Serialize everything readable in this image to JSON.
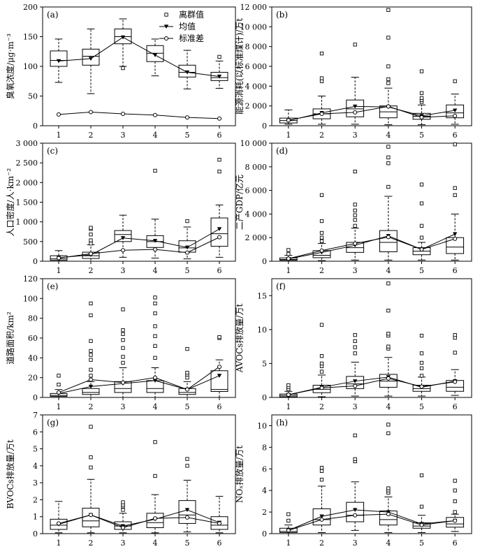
{
  "chart_data": [
    {
      "type": "boxplot",
      "panel": "(a)",
      "ylabel": "臭氧浓度/μg·m⁻³",
      "categories": [
        "1",
        "2",
        "3",
        "4",
        "5",
        "6"
      ],
      "ylim": [
        0,
        200
      ],
      "yticks": [
        0,
        50,
        100,
        150,
        200
      ],
      "ytick_labels": [
        "0",
        "50",
        "100",
        "150",
        "200"
      ],
      "legend": {
        "outlier": "离群值",
        "mean": "均值",
        "sd": "标准差"
      },
      "boxes": [
        {
          "whislo": 73,
          "q1": 100,
          "med": 110,
          "q3": 126,
          "whishi": 146,
          "fliers": []
        },
        {
          "whislo": 54,
          "q1": 102,
          "med": 117,
          "q3": 129,
          "whishi": 163,
          "fliers": []
        },
        {
          "whislo": 100,
          "q1": 138,
          "med": 150,
          "q3": 163,
          "whishi": 180,
          "fliers": [
            97
          ]
        },
        {
          "whislo": 84,
          "q1": 108,
          "med": 122,
          "q3": 135,
          "whishi": 146,
          "fliers": []
        },
        {
          "whislo": 62,
          "q1": 82,
          "med": 90,
          "q3": 102,
          "whishi": 127,
          "fliers": []
        },
        {
          "whislo": 63,
          "q1": 76,
          "med": 81,
          "q3": 90,
          "whishi": 109,
          "fliers": [
            116
          ]
        }
      ],
      "mean": [
        109,
        113,
        149,
        119,
        90,
        83
      ],
      "sd": [
        19,
        23,
        20,
        18,
        14,
        12
      ]
    },
    {
      "type": "boxplot",
      "panel": "(b)",
      "ylabel": "能源消耗(以标准煤计)/万t",
      "categories": [
        "1",
        "2",
        "3",
        "4",
        "5",
        "6"
      ],
      "ylim": [
        0,
        12000
      ],
      "yticks": [
        0,
        2000,
        4000,
        6000,
        8000,
        10000,
        12000
      ],
      "ytick_labels": [
        "0",
        "2 000",
        "4 000",
        "6 000",
        "8 000",
        "10 000",
        "12 000"
      ],
      "boxes": [
        {
          "whislo": 150,
          "q1": 280,
          "med": 520,
          "q3": 770,
          "whishi": 1600,
          "fliers": []
        },
        {
          "whislo": 150,
          "q1": 700,
          "med": 1200,
          "q3": 1700,
          "whishi": 3000,
          "fliers": [
            4500,
            4800,
            7300
          ]
        },
        {
          "whislo": 150,
          "q1": 900,
          "med": 1700,
          "q3": 2600,
          "whishi": 4900,
          "fliers": [
            8200
          ]
        },
        {
          "whislo": 100,
          "q1": 800,
          "med": 1400,
          "q3": 2000,
          "whishi": 3800,
          "fliers": [
            4300,
            4700,
            6000,
            8900,
            11700
          ]
        },
        {
          "whislo": 100,
          "q1": 650,
          "med": 950,
          "q3": 1250,
          "whishi": 2100,
          "fliers": [
            2400,
            2600,
            2800,
            3300,
            5500
          ]
        },
        {
          "whislo": 150,
          "q1": 800,
          "med": 1300,
          "q3": 2100,
          "whishi": 3200,
          "fliers": [
            4500
          ]
        }
      ],
      "mean": [
        520,
        1300,
        1950,
        1900,
        1000,
        1550
      ],
      "sd": [
        560,
        1200,
        1350,
        1950,
        850,
        1000
      ]
    },
    {
      "type": "boxplot",
      "panel": "(c)",
      "ylabel": "人口密度/人·km⁻²",
      "categories": [
        "1",
        "2",
        "3",
        "4",
        "5",
        "6"
      ],
      "ylim": [
        0,
        3000
      ],
      "yticks": [
        0,
        500,
        1000,
        1500,
        2000,
        2500,
        3000
      ],
      "ytick_labels": [
        "0",
        "500",
        "1 000",
        "1 500",
        "2 000",
        "2 500",
        "3 000"
      ],
      "boxes": [
        {
          "whislo": 0,
          "q1": 25,
          "med": 60,
          "q3": 140,
          "whishi": 270,
          "fliers": []
        },
        {
          "whislo": 0,
          "q1": 70,
          "med": 140,
          "q3": 230,
          "whishi": 420,
          "fliers": [
            450,
            530,
            680,
            820,
            850
          ]
        },
        {
          "whislo": 100,
          "q1": 500,
          "med": 680,
          "q3": 780,
          "whishi": 1170,
          "fliers": []
        },
        {
          "whislo": 80,
          "q1": 350,
          "med": 500,
          "q3": 650,
          "whishi": 1070,
          "fliers": [
            2300
          ]
        },
        {
          "whislo": 60,
          "q1": 230,
          "med": 340,
          "q3": 520,
          "whishi": 870,
          "fliers": [
            1020
          ]
        },
        {
          "whislo": 100,
          "q1": 380,
          "med": 700,
          "q3": 1100,
          "whishi": 1430,
          "fliers": [
            2280,
            2580
          ]
        }
      ],
      "mean": [
        90,
        160,
        590,
        520,
        350,
        820
      ],
      "sd": [
        80,
        190,
        280,
        300,
        220,
        610
      ]
    },
    {
      "type": "boxplot",
      "panel": "(d)",
      "ylabel": "二产GDP/亿元",
      "categories": [
        "1",
        "2",
        "3",
        "4",
        "5",
        "6"
      ],
      "ylim": [
        0,
        10000
      ],
      "yticks": [
        0,
        2000,
        4000,
        6000,
        8000,
        10000
      ],
      "ytick_labels": [
        "0",
        "2 000",
        "4 000",
        "6 000",
        "8 000",
        "10 000"
      ],
      "boxes": [
        {
          "whislo": 0,
          "q1": 80,
          "med": 150,
          "q3": 280,
          "whishi": 500,
          "fliers": [
            620,
            950
          ]
        },
        {
          "whislo": 50,
          "q1": 300,
          "med": 500,
          "q3": 900,
          "whishi": 1500,
          "fliers": [
            1700,
            2000,
            2400,
            3400,
            5600
          ]
        },
        {
          "whislo": 100,
          "q1": 750,
          "med": 1150,
          "q3": 1600,
          "whishi": 2800,
          "fliers": [
            3000,
            3500,
            3900,
            4300,
            4800,
            7600
          ]
        },
        {
          "whislo": 100,
          "q1": 800,
          "med": 1600,
          "q3": 2600,
          "whishi": 5500,
          "fliers": [
            6300,
            8300,
            8800,
            9700
          ]
        },
        {
          "whislo": 100,
          "q1": 550,
          "med": 850,
          "q3": 1150,
          "whishi": 1600,
          "fliers": [
            2000,
            3000,
            4900,
            6500
          ]
        },
        {
          "whislo": 100,
          "q1": 650,
          "med": 1200,
          "q3": 2000,
          "whishi": 4000,
          "fliers": [
            5600,
            6200,
            9900
          ]
        }
      ],
      "mean": [
        200,
        750,
        1350,
        2150,
        1000,
        2300
      ],
      "sd": [
        220,
        900,
        1500,
        2050,
        1000,
        1900
      ]
    },
    {
      "type": "boxplot",
      "panel": "(e)",
      "ylabel": "道路面积/km²",
      "categories": [
        "1",
        "2",
        "3",
        "4",
        "5",
        "6"
      ],
      "ylim": [
        0,
        120
      ],
      "yticks": [
        0,
        20,
        40,
        60,
        80,
        100,
        120
      ],
      "ytick_labels": [
        "0",
        "20",
        "40",
        "60",
        "80",
        "100",
        "120"
      ],
      "boxes": [
        {
          "whislo": 0,
          "q1": 1,
          "med": 2,
          "q3": 4,
          "whishi": 8,
          "fliers": [
            13,
            22
          ]
        },
        {
          "whislo": 0,
          "q1": 3,
          "med": 5,
          "q3": 9,
          "whishi": 16,
          "fliers": [
            22,
            28,
            38,
            43,
            47,
            57,
            83,
            95
          ]
        },
        {
          "whislo": 0,
          "q1": 5,
          "med": 9,
          "q3": 16,
          "whishi": 30,
          "fliers": [
            35,
            41,
            50,
            58,
            64,
            68,
            89
          ]
        },
        {
          "whislo": 0,
          "q1": 5,
          "med": 9,
          "q3": 17,
          "whishi": 30,
          "fliers": [
            40,
            52,
            62,
            72,
            85,
            95,
            101
          ]
        },
        {
          "whislo": 0,
          "q1": 3,
          "med": 5,
          "q3": 9,
          "whishi": 16,
          "fliers": [
            20,
            23,
            25,
            49
          ]
        },
        {
          "whislo": 0,
          "q1": 6,
          "med": 8,
          "q3": 27,
          "whishi": 38,
          "fliers": [
            60,
            61
          ]
        }
      ],
      "mean": [
        4,
        11,
        14,
        17,
        8,
        22
      ],
      "sd": [
        5,
        18,
        15,
        20,
        8,
        31
      ]
    },
    {
      "type": "boxplot",
      "panel": "(f)",
      "ylabel": "AVOCs排放量/万t",
      "categories": [
        "1",
        "2",
        "3",
        "4",
        "5",
        "6"
      ],
      "ylim": [
        0,
        17.5
      ],
      "yticks": [
        0,
        5,
        10,
        15
      ],
      "ytick_labels": [
        "0",
        "5",
        "10",
        "15"
      ],
      "boxes": [
        {
          "whislo": 0,
          "q1": 0.1,
          "med": 0.3,
          "q3": 0.5,
          "whishi": 0.9,
          "fliers": [
            1.2,
            1.5,
            1.8
          ]
        },
        {
          "whislo": 0.1,
          "q1": 0.7,
          "med": 1.2,
          "q3": 1.8,
          "whishi": 3.3,
          "fliers": [
            3.8,
            4.6,
            5.0,
            6.1,
            10.7
          ]
        },
        {
          "whislo": 0.2,
          "q1": 1.3,
          "med": 2.0,
          "q3": 3.1,
          "whishi": 5.2,
          "fliers": [
            6.5,
            7.4,
            8.3,
            9.2
          ]
        },
        {
          "whislo": 0.2,
          "q1": 1.5,
          "med": 2.4,
          "q3": 3.4,
          "whishi": 5.9,
          "fliers": [
            7.2,
            7.5,
            9.1,
            9.4,
            12.8,
            16.8
          ]
        },
        {
          "whislo": 0.2,
          "q1": 0.9,
          "med": 1.3,
          "q3": 1.8,
          "whishi": 3.0,
          "fliers": [
            3.2,
            4.3,
            5.1,
            6.5,
            9.1
          ]
        },
        {
          "whislo": 0.3,
          "q1": 0.9,
          "med": 1.5,
          "q3": 2.5,
          "whishi": 4.1,
          "fliers": [
            6.6,
            8.8,
            9.2
          ]
        }
      ],
      "mean": [
        0.4,
        1.5,
        2.4,
        3.0,
        1.5,
        2.4
      ],
      "sd": [
        0.4,
        1.4,
        1.7,
        2.8,
        1.6,
        2.3
      ]
    },
    {
      "type": "boxplot",
      "panel": "(g)",
      "ylabel": "BVOCs排放量/万t",
      "categories": [
        "1",
        "2",
        "3",
        "4",
        "5",
        "6"
      ],
      "ylim": [
        0,
        7
      ],
      "yticks": [
        0,
        1,
        2,
        3,
        4,
        5,
        6,
        7
      ],
      "ytick_labels": [
        "0",
        "1",
        "2",
        "3",
        "4",
        "5",
        "6",
        "7"
      ],
      "boxes": [
        {
          "whislo": 0.05,
          "q1": 0.25,
          "med": 0.5,
          "q3": 0.85,
          "whishi": 1.9,
          "fliers": []
        },
        {
          "whislo": 0.05,
          "q1": 0.4,
          "med": 0.75,
          "q3": 1.5,
          "whishi": 3.2,
          "fliers": [
            3.9,
            4.5,
            6.3
          ]
        },
        {
          "whislo": 0.05,
          "q1": 0.25,
          "med": 0.45,
          "q3": 0.7,
          "whishi": 1.2,
          "fliers": [
            1.4,
            1.6,
            1.7,
            1.85
          ]
        },
        {
          "whislo": 0.05,
          "q1": 0.35,
          "med": 0.65,
          "q3": 1.2,
          "whishi": 2.3,
          "fliers": [
            3.4,
            5.4
          ]
        },
        {
          "whislo": 0.1,
          "q1": 0.6,
          "med": 1.1,
          "q3": 1.95,
          "whishi": 3.15,
          "fliers": [
            4.0,
            4.4
          ]
        },
        {
          "whislo": 0.05,
          "q1": 0.25,
          "med": 0.5,
          "q3": 1.0,
          "whishi": 2.2,
          "fliers": []
        }
      ],
      "mean": [
        0.55,
        1.1,
        0.45,
        0.85,
        1.4,
        0.65
      ],
      "sd": [
        0.6,
        1.1,
        0.35,
        0.9,
        0.95,
        0.6
      ]
    },
    {
      "type": "boxplot",
      "panel": "(h)",
      "ylabel": "NOₓ排放量/万t",
      "categories": [
        "1",
        "2",
        "3",
        "4",
        "5",
        "6"
      ],
      "ylim": [
        0,
        11
      ],
      "yticks": [
        0,
        2,
        4,
        6,
        8,
        10
      ],
      "ytick_labels": [
        "0",
        "2",
        "4",
        "6",
        "8",
        "10"
      ],
      "boxes": [
        {
          "whislo": 0,
          "q1": 0.1,
          "med": 0.2,
          "q3": 0.5,
          "whishi": 0.8,
          "fliers": [
            1.2,
            1.8
          ]
        },
        {
          "whislo": 0.1,
          "q1": 0.8,
          "med": 1.3,
          "q3": 2.3,
          "whishi": 4.4,
          "fliers": [
            5.0,
            5.8,
            6.1
          ]
        },
        {
          "whislo": 0.3,
          "q1": 1.1,
          "med": 1.7,
          "q3": 2.9,
          "whishi": 4.8,
          "fliers": [
            6.7,
            6.9,
            9.1
          ]
        },
        {
          "whislo": 0.1,
          "q1": 0.8,
          "med": 1.3,
          "q3": 2.1,
          "whishi": 3.4,
          "fliers": [
            3.8,
            4.0,
            4.2,
            9.3,
            10.1
          ]
        },
        {
          "whislo": 0.1,
          "q1": 0.5,
          "med": 0.7,
          "q3": 1.0,
          "whishi": 1.7,
          "fliers": [
            2.5,
            5.4
          ]
        },
        {
          "whislo": 0.2,
          "q1": 0.6,
          "med": 0.9,
          "q3": 1.5,
          "whishi": 1.8,
          "fliers": [
            2.0,
            3.0,
            4.0,
            4.9
          ]
        }
      ],
      "mean": [
        0.3,
        1.6,
        2.2,
        2.0,
        0.9,
        1.2
      ],
      "sd": [
        0.3,
        1.3,
        1.7,
        1.8,
        0.8,
        1.2
      ]
    }
  ]
}
